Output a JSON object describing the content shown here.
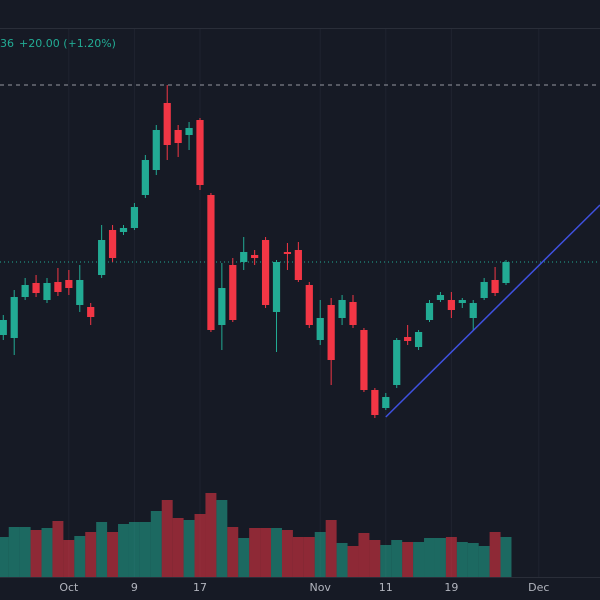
{
  "header": {
    "price_fragment": "36",
    "change": "+20.00 (+1.20%)"
  },
  "chart_data": {
    "type": "candlestick",
    "up_color": "#22ab94",
    "down_color": "#f23645",
    "open": [
      265,
      262,
      303,
      317,
      300,
      318,
      320,
      295,
      293,
      325,
      370,
      368,
      372,
      405,
      430,
      497,
      470,
      465,
      480,
      405,
      275,
      335,
      338,
      345,
      360,
      288,
      348,
      350,
      315,
      260,
      295,
      282,
      298,
      270,
      210,
      192,
      215,
      263,
      253,
      280,
      300,
      300,
      297,
      282,
      302,
      320,
      317
    ],
    "close": [
      280,
      303,
      315,
      307,
      317,
      308,
      312,
      320,
      283,
      360,
      342,
      372,
      393,
      440,
      470,
      455,
      457,
      472,
      415,
      270,
      312,
      280,
      348,
      342,
      295,
      338,
      346,
      320,
      275,
      282,
      240,
      300,
      275,
      210,
      185,
      203,
      260,
      259,
      268,
      297,
      305,
      290,
      300,
      297,
      318,
      307,
      338
    ],
    "high": [
      285,
      310,
      322,
      325,
      322,
      332,
      330,
      335,
      297,
      375,
      375,
      375,
      397,
      445,
      475,
      515,
      475,
      478,
      482,
      407,
      337,
      342,
      363,
      350,
      363,
      340,
      357,
      358,
      318,
      300,
      302,
      305,
      305,
      272,
      212,
      207,
      262,
      275,
      270,
      300,
      308,
      308,
      302,
      300,
      322,
      333,
      340
    ],
    "low": [
      260,
      245,
      300,
      303,
      297,
      304,
      305,
      288,
      275,
      322,
      338,
      365,
      370,
      402,
      425,
      440,
      443,
      450,
      410,
      268,
      250,
      278,
      330,
      335,
      292,
      248,
      330,
      318,
      272,
      255,
      215,
      275,
      272,
      208,
      182,
      190,
      212,
      255,
      250,
      278,
      298,
      282,
      292,
      270,
      300,
      304,
      315
    ],
    "volume": [
      40,
      50,
      50,
      47,
      49,
      56,
      37,
      41,
      45,
      55,
      45,
      53,
      55,
      55,
      66,
      77,
      59,
      57,
      63,
      84,
      77,
      50,
      39,
      49,
      49,
      49,
      47,
      40,
      40,
      45,
      57,
      34,
      31,
      44,
      37,
      32,
      37,
      35,
      35,
      39,
      39,
      40,
      35,
      34,
      31,
      45,
      40
    ],
    "xlim": [
      -0.3,
      54.6
    ],
    "ylim": [
      0,
      600
    ],
    "y2lim": [
      0,
      577
    ],
    "xticks": [
      {
        "value": 6,
        "label": "Oct"
      },
      {
        "value": 12,
        "label": "9"
      },
      {
        "value": 18,
        "label": "17"
      },
      {
        "value": 29,
        "label": "Nov"
      },
      {
        "value": 35,
        "label": "11"
      },
      {
        "value": 41,
        "label": "19"
      },
      {
        "value": 49,
        "label": "Dec"
      }
    ],
    "grid": true,
    "trend_line": {
      "x": [
        35,
        54.6
      ],
      "values": [
        183,
        395
      ],
      "color": "#3f51e0"
    }
  }
}
